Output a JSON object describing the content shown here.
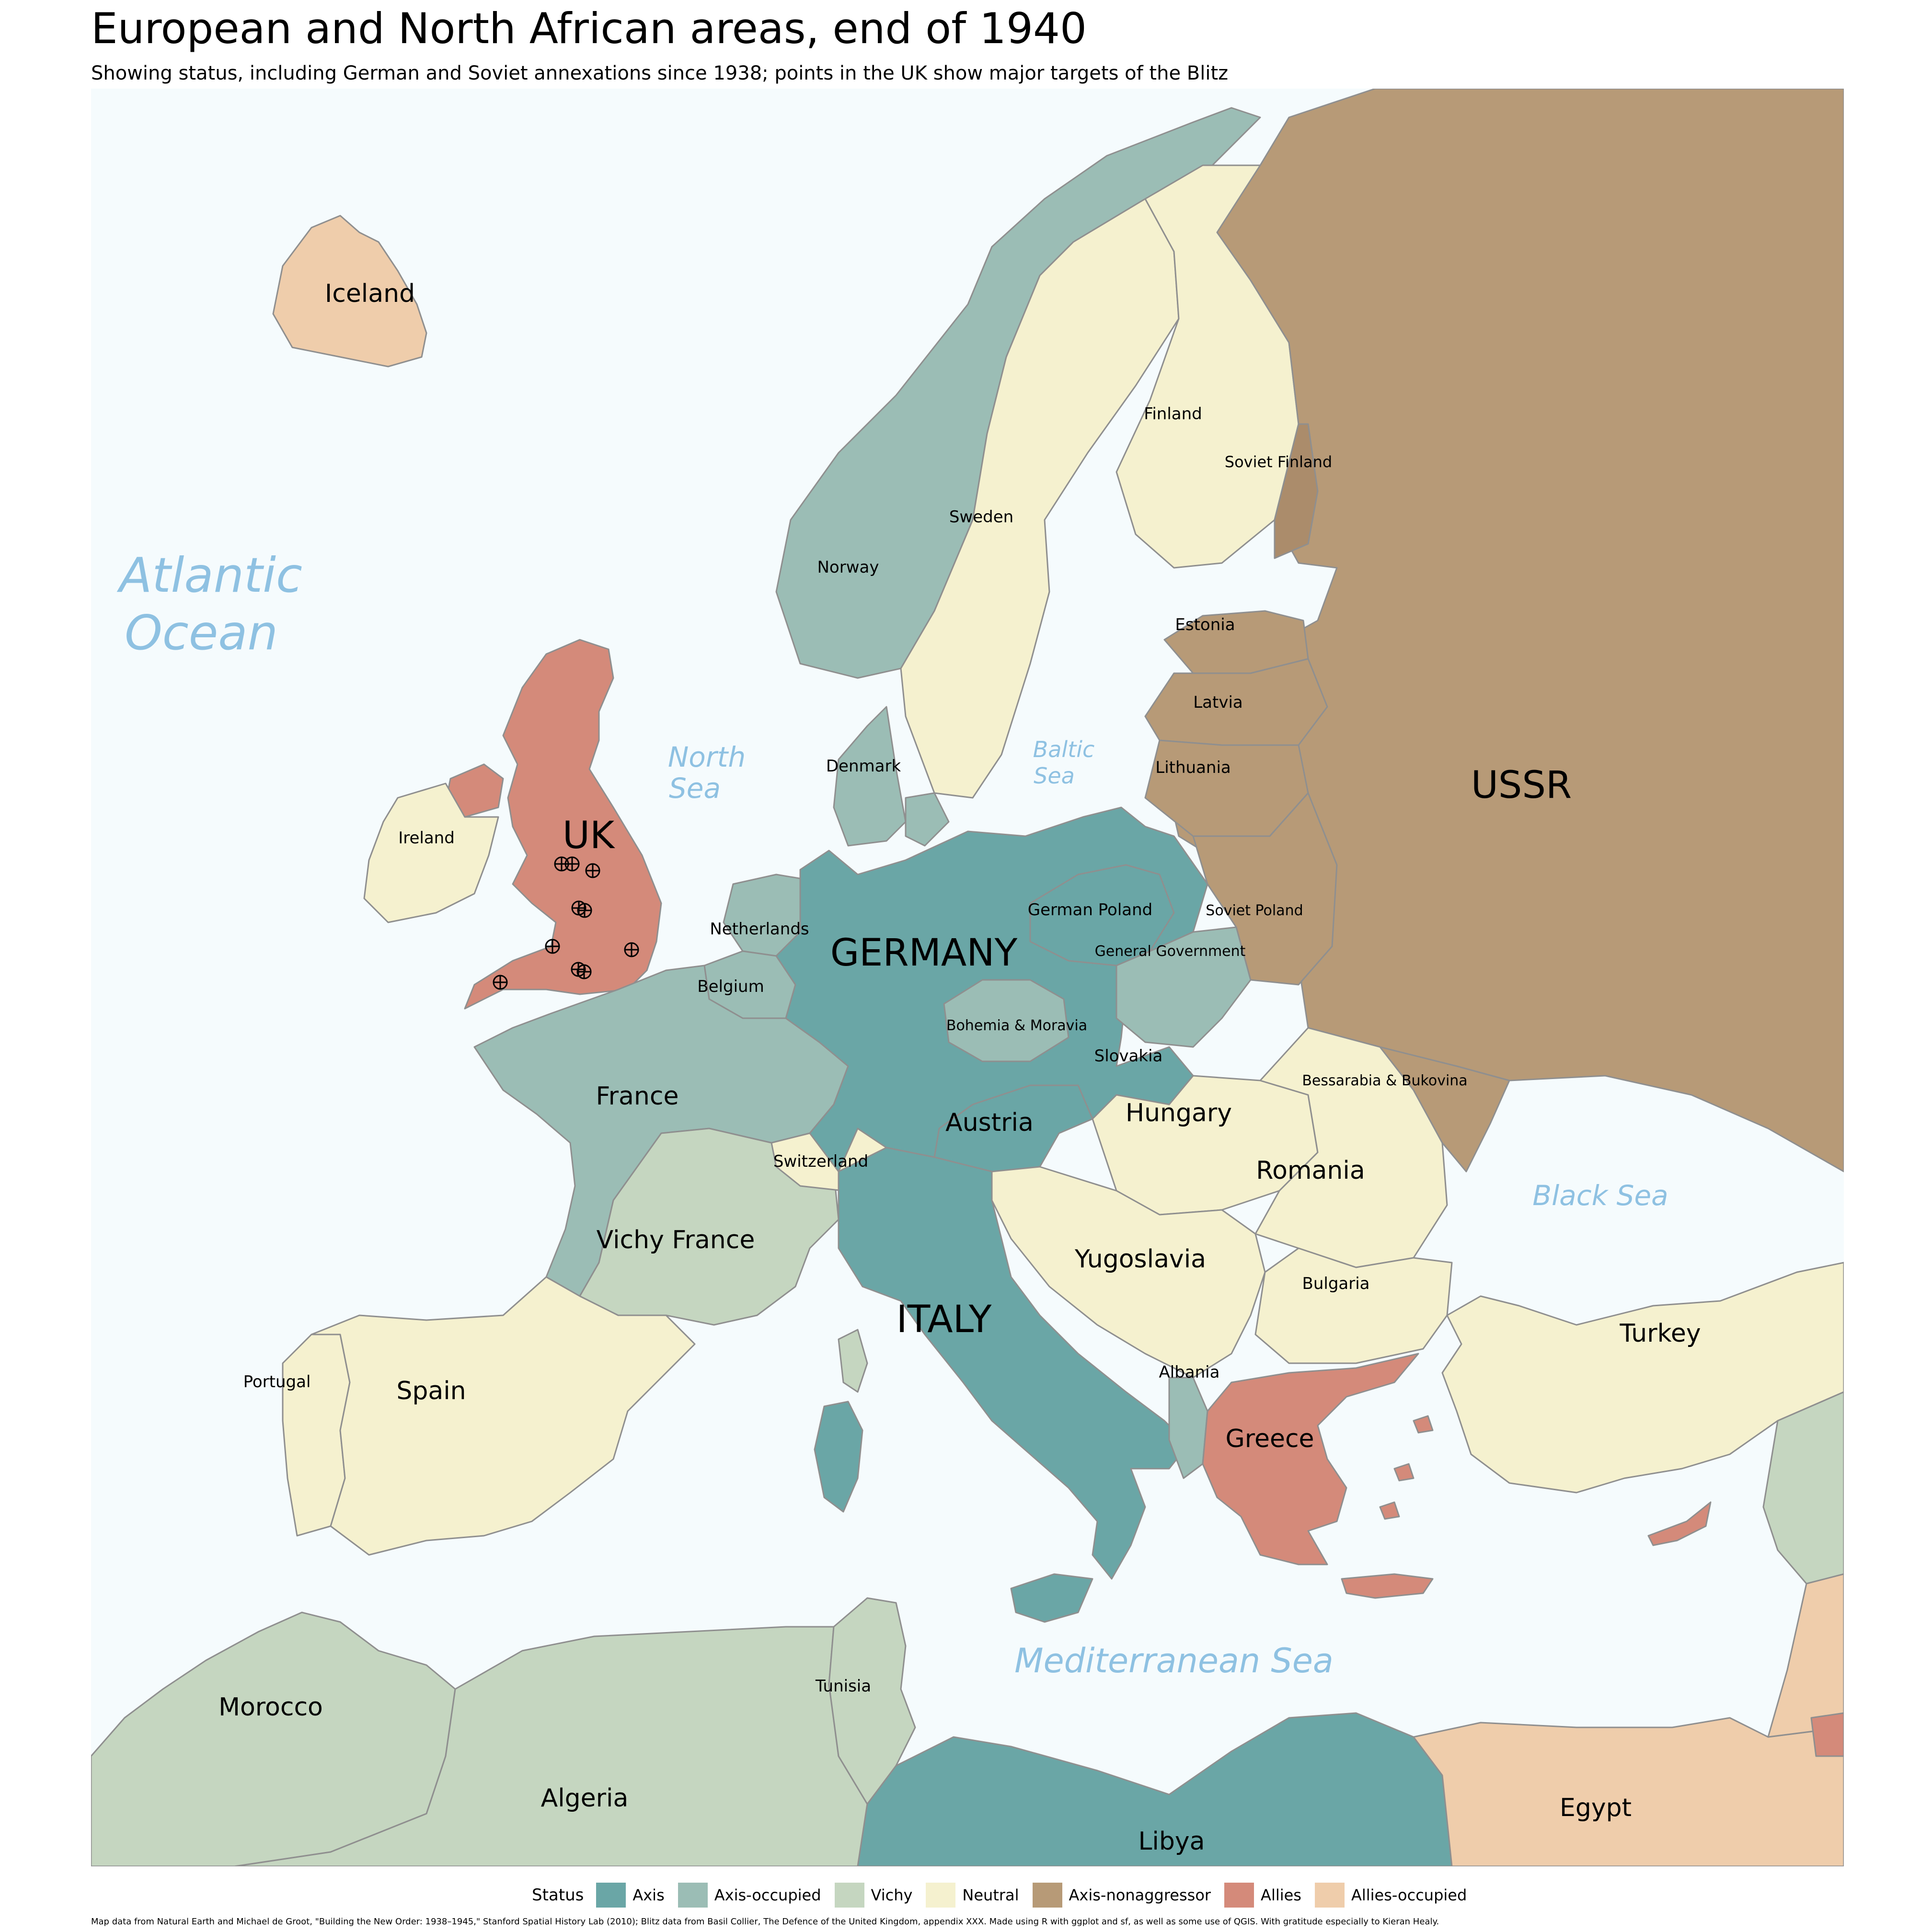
{
  "title": "European and North African areas, end of 1940",
  "subtitle": "Showing status, including German and Soviet annexations since 1938; points in the UK show major targets of the Blitz",
  "status_colors": {
    "axis": "#6aa6a6",
    "axis_occupied": "#9bbdb5",
    "vichy": "#c5d6c0",
    "neutral": "#f5f1cf",
    "axis_nonaggressor": "#b79a77",
    "allies": "#d48a7a",
    "allies_occupied": "#efcdab",
    "sea": "#f5fbfd"
  },
  "regions": {
    "iceland": "Iceland",
    "norway": "Norway",
    "sweden": "Sweden",
    "finland": "Finland",
    "soviet_finland": "Soviet Finland",
    "estonia": "Estonia",
    "latvia": "Latvia",
    "lithuania": "Lithuania",
    "ussr": "USSR",
    "denmark": "Denmark",
    "uk": "UK",
    "ireland": "Ireland",
    "netherlands": "Netherlands",
    "belgium": "Belgium",
    "germany": "GERMANY",
    "german_poland": "German Poland",
    "general_government": "General Government",
    "soviet_poland": "Soviet Poland",
    "bohemia_moravia": "Bohemia & Moravia",
    "slovakia": "Slovakia",
    "bessarabia": "Bessarabia & Bukovina",
    "france": "France",
    "austria": "Austria",
    "hungary": "Hungary",
    "romania": "Romania",
    "switzerland": "Switzerland",
    "vichy_france": "Vichy France",
    "yugoslavia": "Yugoslavia",
    "bulgaria": "Bulgaria",
    "italy": "ITALY",
    "albania": "Albania",
    "greece": "Greece",
    "turkey": "Turkey",
    "portugal": "Portugal",
    "spain": "Spain",
    "tunisia": "Tunisia",
    "morocco": "Morocco",
    "algeria": "Algeria",
    "libya": "Libya",
    "egypt": "Egypt"
  },
  "seas": {
    "atlantic_1": "Atlantic",
    "atlantic_2": "Ocean",
    "north_1": "North",
    "north_2": "Sea",
    "baltic_1": "Baltic",
    "baltic_2": "Sea",
    "black": "Black Sea",
    "med": "Mediterranean Sea"
  },
  "legend": {
    "title": "Status",
    "items": [
      {
        "label": "Axis",
        "color": "#6aa6a6"
      },
      {
        "label": "Axis-occupied",
        "color": "#9bbdb5"
      },
      {
        "label": "Vichy",
        "color": "#c5d6c0"
      },
      {
        "label": "Neutral",
        "color": "#f5f1cf"
      },
      {
        "label": "Axis-nonaggressor",
        "color": "#b79a77"
      },
      {
        "label": "Allies",
        "color": "#d48a7a"
      },
      {
        "label": "Allies-occupied",
        "color": "#efcdab"
      }
    ]
  },
  "caption": "Map data from Natural Earth and Michael de Groot, \"Building the New Order: 1938–1945,\" Stanford Spatial History Lab (2010); Blitz data from Basil Collier, The Defence of the United Kingdom, appendix XXX. Made using R with ggplot and sf, as well as some use of QGIS. With gratitude especially to Kieran Healy."
}
